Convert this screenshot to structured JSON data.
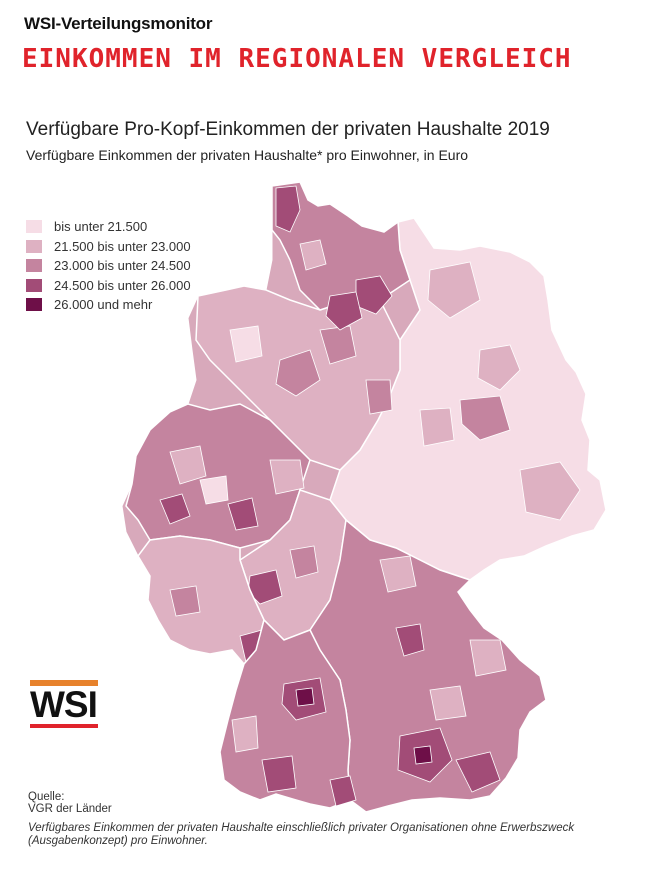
{
  "header": {
    "kicker": "WSI-Verteilungsmonitor",
    "headline": "EINKOMMEN IM REGIONALEN VERGLEICH"
  },
  "map": {
    "title": "Verfügbare Pro-Kopf-Einkommen der privaten Haushalte 2019",
    "subtitle": "Verfügbare Einkommen der privaten Haushalte* pro Einwohner, in Euro",
    "legend": [
      {
        "label": "bis unter 21.500",
        "color": "#f6dde6"
      },
      {
        "label": "21.500 bis unter 23.000",
        "color": "#deb1c2"
      },
      {
        "label": "23.000 bis unter 24.500",
        "color": "#c4849f"
      },
      {
        "label": "24.500 bis unter 26.000",
        "color": "#a24c77"
      },
      {
        "label": "26.000 und mehr",
        "color": "#6e0f48"
      }
    ]
  },
  "logo": {
    "text": "WSI",
    "bar_top_color": "#e7822c",
    "bar_bottom_color": "#e0232b"
  },
  "source": {
    "label": "Quelle:",
    "value": "VGR der Länder"
  },
  "footnote": "Verfügbares Einkommen der privaten Haushalte einschließlich privater Organisationen ohne Erwerbszweck (Ausgabenkonzept) pro Einwohner."
}
